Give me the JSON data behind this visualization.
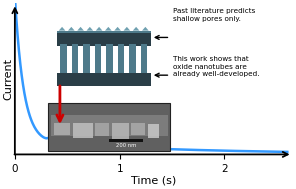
{
  "curve_color": "#3399FF",
  "curve_lw": 1.8,
  "arrow_color": "#CC0000",
  "bg_color": "#ffffff",
  "xlabel": "Time (s)",
  "ylabel": "Current",
  "xticks": [
    0,
    1,
    2
  ],
  "xlim": [
    0,
    2.65
  ],
  "ylim": [
    0,
    1.1
  ],
  "text1": "Past literature predicts\nshallow pores only.",
  "text2": "This work shows that\noxide nanotubes are\nalready well-developed.",
  "scalebar_text": "200 nm",
  "diag_dark": "#2a3e47",
  "diag_light": "#4e7a8a",
  "diag_lighter": "#6fa0b0"
}
